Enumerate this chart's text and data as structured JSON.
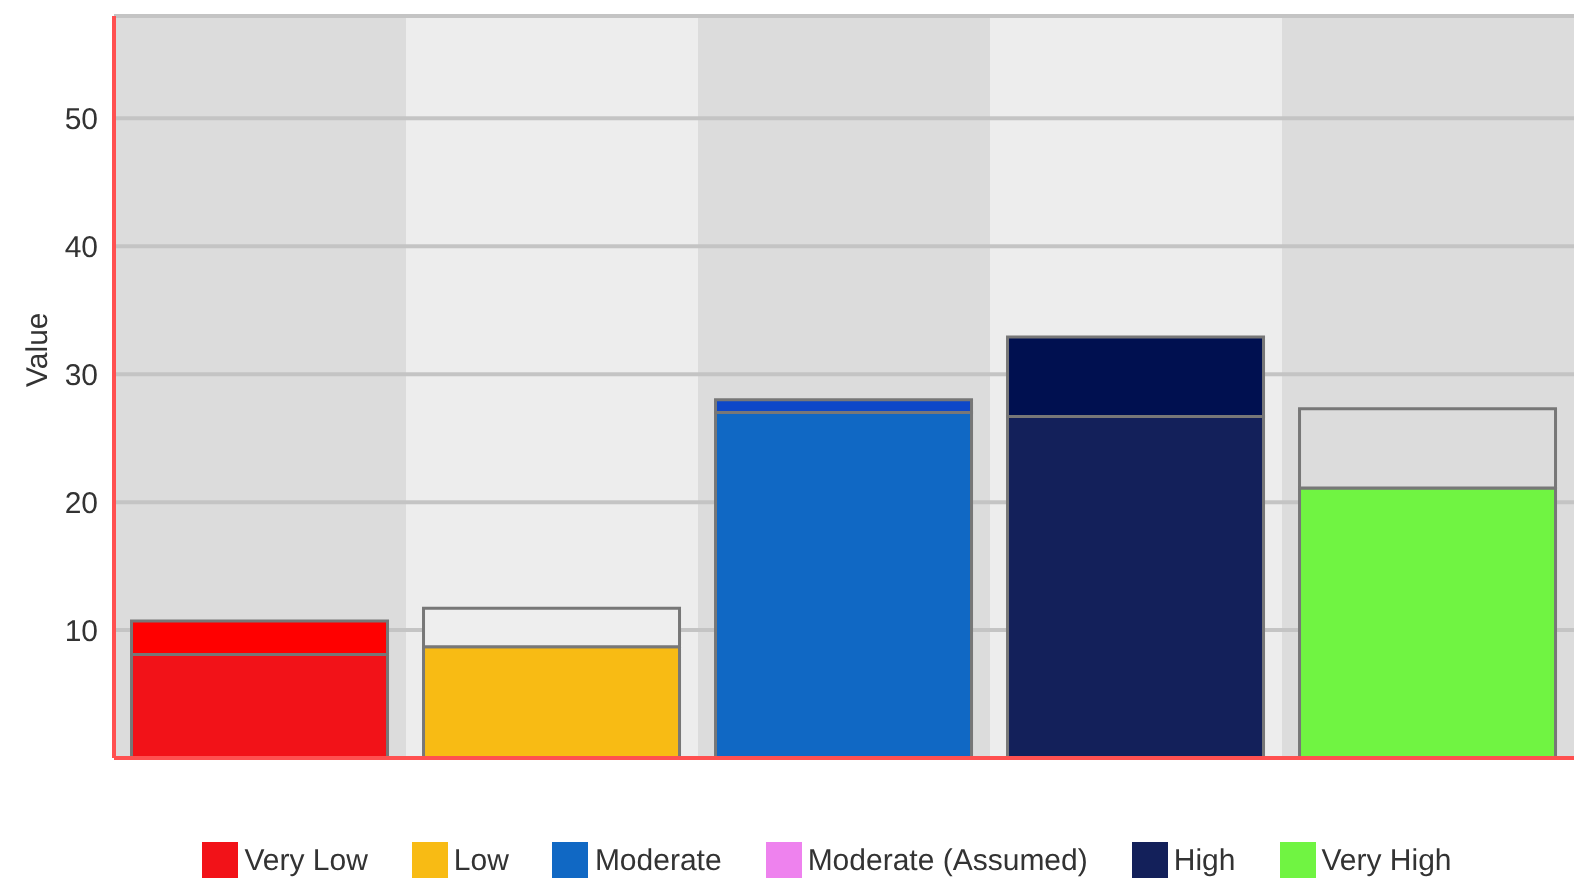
{
  "chart_data": {
    "type": "bar",
    "ylabel": "Value",
    "categories": [
      null,
      null,
      null,
      null,
      null
    ],
    "stacked": true,
    "series": [
      {
        "name": "Very Low",
        "color": "#f21218",
        "values": [
          8.1,
          null,
          null,
          null,
          null
        ]
      },
      {
        "name": "Low",
        "color": "#f8bb14",
        "values": [
          null,
          8.7,
          null,
          null,
          null
        ]
      },
      {
        "name": "Moderate",
        "color": "#1068c4",
        "values": [
          null,
          null,
          27.0,
          null,
          null
        ]
      },
      {
        "name": "Moderate (Assumed)",
        "color": "#ee82ee",
        "values": [
          null,
          null,
          null,
          null,
          null
        ]
      },
      {
        "name": "High",
        "color": "#13205a",
        "values": [
          null,
          null,
          null,
          26.7,
          null
        ]
      },
      {
        "name": "Very High",
        "color": "#70f442",
        "values": [
          null,
          null,
          null,
          null,
          21.1
        ]
      },
      {
        "colors": [
          "#ff0000",
          "#eeeeee",
          "#0d47c8",
          "#001050",
          "#dcdcdc"
        ],
        "values": [
          2.6,
          3.0,
          1.0,
          6.2,
          6.2
        ]
      }
    ],
    "ylim": [
      0,
      58
    ],
    "yticks": [
      10,
      20,
      30,
      40,
      50
    ],
    "grid": "y",
    "legend": "bottom"
  }
}
